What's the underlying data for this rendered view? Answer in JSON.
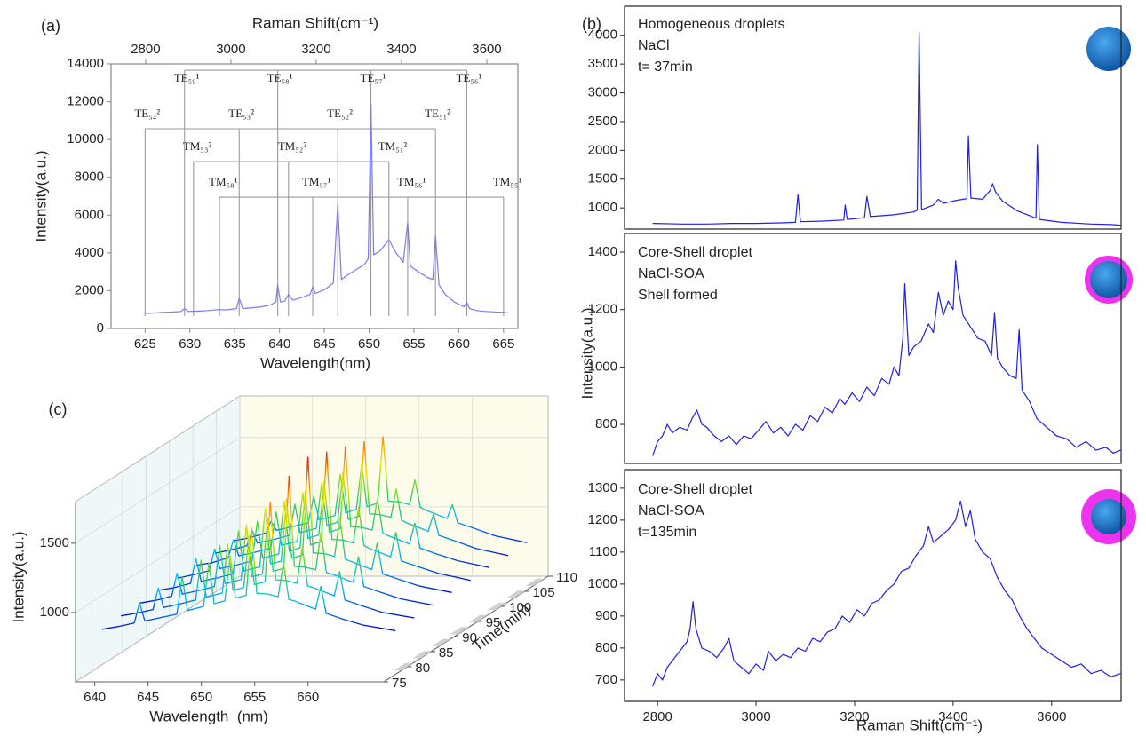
{
  "chart_data": [
    {
      "type": "line",
      "panel_label": "(a)",
      "xlabel": "Wavelength(nm)",
      "ylabel": "Intensity(a.u.)",
      "x2label": "Raman Shift(cm⁻¹)",
      "x": [
        625,
        626,
        627,
        628,
        629,
        629.4,
        629.8,
        631,
        632,
        633.3,
        634,
        635.2,
        635.5,
        635.9,
        637,
        638,
        639,
        639.6,
        639.8,
        640.1,
        640.6,
        641,
        641.5,
        642.5,
        643.4,
        643.7,
        644,
        645,
        646,
        646.5,
        646.9,
        647.5,
        648.5,
        649.5,
        649.9,
        650.2,
        650.5,
        651.2,
        652.2,
        653,
        653.8,
        654.3,
        654.6,
        655.5,
        656.5,
        657.1,
        657.4,
        657.8,
        658.5,
        659.5,
        660.6,
        660.9,
        661.2,
        662,
        663,
        664,
        665,
        665.5
      ],
      "series": [
        {
          "color": "#7a7af2",
          "values": [
            800,
            820,
            850,
            870,
            900,
            1050,
            900,
            920,
            950,
            1000,
            980,
            1050,
            1600,
            1050,
            1100,
            1150,
            1250,
            1400,
            2300,
            1400,
            1450,
            1800,
            1500,
            1650,
            1800,
            2200,
            1850,
            2050,
            2400,
            6600,
            2600,
            2800,
            3100,
            3400,
            3700,
            11900,
            3900,
            4100,
            4700,
            4000,
            3500,
            5600,
            3300,
            3000,
            2700,
            2600,
            4900,
            2300,
            1800,
            1400,
            1150,
            1400,
            1050,
            950,
            900,
            880,
            850,
            820
          ]
        }
      ],
      "xlim": [
        621.2,
        666.6
      ],
      "xticks": [
        625,
        630,
        635,
        640,
        645,
        650,
        655,
        660,
        665
      ],
      "ylim": [
        0,
        14000
      ],
      "yticks": [
        0,
        2000,
        4000,
        6000,
        8000,
        10000,
        12000,
        14000
      ],
      "x2lim": [
        2719,
        3673
      ],
      "x2ticks": [
        2800,
        3000,
        3200,
        3400,
        3600
      ],
      "modes": [
        {
          "label": "TE₅₉¹",
          "wavelength": 629.4,
          "level": 13670
        },
        {
          "label": "TE₅₈¹",
          "wavelength": 639.8,
          "level": 13670
        },
        {
          "label": "TE₅₇¹",
          "wavelength": 650.2,
          "level": 13670
        },
        {
          "label": "TE₅₆¹",
          "wavelength": 660.9,
          "level": 13670
        },
        {
          "label": "TE₅₄²",
          "wavelength": 625.0,
          "level": 10570
        },
        {
          "label": "TE₅₃²",
          "wavelength": 635.5,
          "level": 10570
        },
        {
          "label": "TE₅₂²",
          "wavelength": 646.5,
          "level": 10570
        },
        {
          "label": "TE₅₁²",
          "wavelength": 657.4,
          "level": 10570
        },
        {
          "label": "TM₅₃²",
          "wavelength": 630.4,
          "level": 8830
        },
        {
          "label": "TM₅₂²",
          "wavelength": 641.0,
          "level": 8830
        },
        {
          "label": "TM₅₁²",
          "wavelength": 652.2,
          "level": 8830
        },
        {
          "label": "TM₅₈¹",
          "wavelength": 633.3,
          "level": 6950
        },
        {
          "label": "TM₅₇¹",
          "wavelength": 643.7,
          "level": 6950
        },
        {
          "label": "TM₅₆¹",
          "wavelength": 654.3,
          "level": 6950
        },
        {
          "label": "TM₅₅¹",
          "wavelength": 665.0,
          "level": 6950
        }
      ]
    },
    {
      "type": "line",
      "panel_label": "(b)",
      "annotation": [
        "Homogeneous droplets",
        "NaCl",
        "t= 37min"
      ],
      "x": [
        2790,
        2850,
        2900,
        2950,
        3000,
        3050,
        3080,
        3085,
        3090,
        3130,
        3178,
        3181,
        3185,
        3220,
        3225,
        3232,
        3280,
        3320,
        3327,
        3331,
        3336,
        3360,
        3370,
        3380,
        3400,
        3420,
        3428,
        3431,
        3436,
        3460,
        3475,
        3480,
        3486,
        3500,
        3530,
        3560,
        3568,
        3571,
        3575,
        3620,
        3680,
        3720,
        3740
      ],
      "series": [
        {
          "color": "#1f1fe8",
          "values": [
            730,
            720,
            720,
            730,
            730,
            740,
            750,
            1230,
            760,
            770,
            790,
            1050,
            800,
            830,
            1200,
            850,
            880,
            930,
            960,
            4050,
            970,
            1050,
            1150,
            1080,
            1120,
            1150,
            1160,
            2250,
            1170,
            1150,
            1300,
            1420,
            1280,
            1120,
            950,
            850,
            820,
            2100,
            800,
            750,
            720,
            710,
            700
          ]
        }
      ],
      "xlim": [
        2733,
        3741
      ],
      "ylim": [
        632,
        4505
      ],
      "yticks": [
        1000,
        1500,
        2000,
        2500,
        3000,
        3500,
        4000
      ]
    },
    {
      "type": "line",
      "ylabel": "Intensity(a.u.)",
      "annotation": [
        "Core-Shell droplet",
        "NaCl-SOA",
        "Shell formed"
      ],
      "x": [
        2790,
        2800,
        2810,
        2820,
        2830,
        2845,
        2860,
        2870,
        2880,
        2890,
        2900,
        2915,
        2930,
        2945,
        2960,
        2975,
        2990,
        3005,
        3020,
        3035,
        3050,
        3065,
        3080,
        3095,
        3110,
        3125,
        3140,
        3155,
        3170,
        3180,
        3195,
        3210,
        3225,
        3240,
        3255,
        3270,
        3280,
        3290,
        3298,
        3302,
        3310,
        3320,
        3335,
        3350,
        3360,
        3370,
        3380,
        3390,
        3400,
        3405,
        3410,
        3420,
        3435,
        3450,
        3465,
        3478,
        3484,
        3490,
        3500,
        3515,
        3528,
        3534,
        3540,
        3555,
        3570,
        3590,
        3610,
        3630,
        3650,
        3670,
        3690,
        3710,
        3725,
        3740
      ],
      "series": [
        {
          "color": "#1f1fe8",
          "values": [
            690,
            740,
            760,
            800,
            770,
            790,
            780,
            820,
            850,
            800,
            790,
            760,
            740,
            760,
            730,
            760,
            750,
            780,
            810,
            770,
            790,
            760,
            800,
            780,
            830,
            810,
            860,
            840,
            890,
            870,
            910,
            880,
            930,
            900,
            960,
            940,
            1000,
            970,
            1100,
            1290,
            1040,
            1070,
            1090,
            1150,
            1120,
            1260,
            1180,
            1230,
            1200,
            1370,
            1280,
            1180,
            1140,
            1100,
            1090,
            1040,
            1190,
            1030,
            1000,
            970,
            960,
            1130,
            920,
            880,
            820,
            790,
            760,
            750,
            720,
            740,
            710,
            720,
            700,
            710
          ]
        }
      ],
      "xlim": [
        2733,
        3741
      ],
      "ylim": [
        664,
        1465
      ],
      "yticks": [
        800,
        1000,
        1200,
        1400
      ]
    },
    {
      "type": "line",
      "xlabel": "Raman Shift(cm⁻¹)",
      "annotation": [
        "Core-Shell droplet",
        "NaCl-SOA",
        "t=135min"
      ],
      "x": [
        2790,
        2800,
        2810,
        2820,
        2830,
        2845,
        2860,
        2866,
        2872,
        2878,
        2890,
        2905,
        2920,
        2935,
        2945,
        2955,
        2970,
        2985,
        3000,
        3015,
        3025,
        3040,
        3055,
        3070,
        3085,
        3100,
        3115,
        3130,
        3145,
        3160,
        3175,
        3190,
        3205,
        3220,
        3235,
        3250,
        3265,
        3280,
        3295,
        3310,
        3325,
        3340,
        3350,
        3360,
        3375,
        3390,
        3405,
        3415,
        3425,
        3435,
        3445,
        3460,
        3475,
        3490,
        3505,
        3520,
        3535,
        3550,
        3565,
        3580,
        3600,
        3620,
        3640,
        3660,
        3680,
        3700,
        3720,
        3740
      ],
      "series": [
        {
          "color": "#1f1fe8",
          "values": [
            680,
            720,
            700,
            740,
            760,
            790,
            820,
            860,
            945,
            860,
            800,
            790,
            770,
            800,
            830,
            760,
            740,
            720,
            750,
            730,
            790,
            760,
            780,
            770,
            800,
            790,
            830,
            820,
            850,
            860,
            900,
            880,
            920,
            900,
            940,
            950,
            980,
            1000,
            1040,
            1050,
            1090,
            1120,
            1180,
            1130,
            1150,
            1170,
            1200,
            1260,
            1180,
            1230,
            1140,
            1100,
            1080,
            1020,
            980,
            950,
            900,
            860,
            830,
            800,
            780,
            760,
            740,
            750,
            720,
            730,
            710,
            720
          ]
        }
      ],
      "xlim": [
        2733,
        3741
      ],
      "xticks": [
        2800,
        3000,
        3200,
        3400,
        3600
      ],
      "ylim": [
        633,
        1358
      ],
      "yticks": [
        700,
        800,
        900,
        1000,
        1100,
        1200,
        1300
      ]
    },
    {
      "type": "waterfall3d",
      "panel_label": "(c)",
      "xlabel": "Wavelength  (nm)",
      "ylabel": "Time(min)",
      "zlabel": "Intensity(a.u.)",
      "xlim": [
        638.2,
        667.1
      ],
      "xticks": [
        640,
        645,
        650,
        655,
        660
      ],
      "ylim": [
        75,
        110
      ],
      "yticks": [
        75,
        80,
        85,
        90,
        95,
        100,
        105,
        110
      ],
      "zlim": [
        500,
        1800
      ],
      "zticks": [
        1000,
        1500
      ],
      "colormap": [
        "#0000c8",
        "#00b4ff",
        "#3cd23c",
        "#e6e600",
        "#ff8c00",
        "#ff0000"
      ],
      "x": [
        638.5,
        640,
        641.5,
        642,
        642.5,
        644,
        645.5,
        646,
        646.5,
        648,
        648.5,
        649,
        650,
        650.5,
        651,
        652,
        652.5,
        653,
        654,
        655,
        655.5,
        656,
        656.5,
        657.5,
        658.5,
        659,
        659.5,
        661,
        663,
        666
      ],
      "times": [
        80,
        84,
        88,
        92,
        96,
        100,
        104,
        108
      ],
      "series": [
        {
          "values": [
            770,
            790,
            815,
            960,
            830,
            855,
            880,
            1150,
            905,
            935,
            1250,
            955,
            975,
            1300,
            995,
            1015,
            1500,
            1030,
            1025,
            1005,
            1250,
            985,
            975,
            945,
            915,
            1080,
            885,
            845,
            800,
            760
          ]
        },
        {
          "values": [
            780,
            800,
            825,
            980,
            840,
            865,
            895,
            1180,
            915,
            945,
            1300,
            965,
            985,
            1350,
            1005,
            1025,
            1600,
            1040,
            1035,
            1015,
            1280,
            995,
            985,
            955,
            925,
            1100,
            895,
            855,
            805,
            765
          ]
        },
        {
          "values": [
            785,
            805,
            835,
            1000,
            850,
            875,
            905,
            1200,
            925,
            955,
            1350,
            975,
            995,
            1400,
            1015,
            1035,
            1700,
            1050,
            1045,
            1025,
            1300,
            1005,
            995,
            965,
            935,
            1120,
            905,
            865,
            815,
            770
          ]
        },
        {
          "values": [
            790,
            810,
            840,
            1020,
            855,
            880,
            910,
            1220,
            930,
            960,
            1380,
            980,
            1000,
            1450,
            1020,
            1045,
            1750,
            1060,
            1055,
            1035,
            1320,
            1015,
            1000,
            970,
            940,
            1130,
            910,
            870,
            820,
            775
          ]
        },
        {
          "values": [
            790,
            815,
            845,
            1000,
            860,
            885,
            915,
            1200,
            935,
            965,
            1350,
            985,
            1010,
            1420,
            1030,
            1055,
            1700,
            1070,
            1065,
            1045,
            1300,
            1025,
            1005,
            975,
            945,
            1120,
            915,
            875,
            825,
            775
          ]
        },
        {
          "values": [
            795,
            815,
            850,
            980,
            865,
            890,
            920,
            1180,
            940,
            970,
            1320,
            990,
            1015,
            1400,
            1035,
            1060,
            1650,
            1075,
            1070,
            1050,
            1280,
            1030,
            1010,
            980,
            950,
            1100,
            920,
            880,
            830,
            780
          ]
        },
        {
          "values": [
            795,
            820,
            850,
            960,
            870,
            895,
            925,
            1150,
            945,
            975,
            1300,
            995,
            1020,
            1380,
            1040,
            1065,
            1600,
            1080,
            1075,
            1055,
            1260,
            1035,
            1015,
            985,
            955,
            1080,
            925,
            885,
            830,
            780
          ]
        },
        {
          "values": [
            800,
            820,
            855,
            940,
            875,
            900,
            930,
            1120,
            950,
            980,
            1280,
            1000,
            1025,
            1350,
            1045,
            1070,
            1550,
            1085,
            1080,
            1060,
            1240,
            1040,
            1020,
            990,
            960,
            1060,
            930,
            890,
            835,
            785
          ]
        }
      ]
    }
  ]
}
